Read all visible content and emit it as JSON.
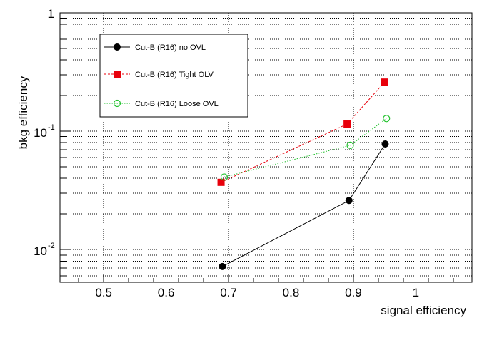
{
  "chart_data": {
    "type": "line",
    "xlabel": "signal efficiency",
    "ylabel": "bkg efficiency",
    "xlim": [
      0.43,
      1.09
    ],
    "ylim": [
      0.0053,
      1.0
    ],
    "y_scale": "log",
    "grid": true,
    "grid_style": "dotted",
    "legend_position": "top-left",
    "x_ticks": [
      0.5,
      0.6,
      0.7,
      0.8,
      0.9,
      1.0
    ],
    "x_tick_labels": [
      "0.5",
      "0.6",
      "0.7",
      "0.8",
      "0.9",
      "1"
    ],
    "y_tick_labels": [
      {
        "value": 0.01,
        "base": "10",
        "exp": "-2"
      },
      {
        "value": 0.1,
        "base": "10",
        "exp": "-1"
      },
      {
        "value": 1,
        "base": "1",
        "exp": ""
      }
    ],
    "series": [
      {
        "name": "Cut-B (R16) no OVL",
        "color": "#000000",
        "marker": "filled-circle",
        "line_style": "solid",
        "x": [
          0.69,
          0.893,
          0.951
        ],
        "y": [
          0.0072,
          0.026,
          0.078
        ]
      },
      {
        "name": "Cut-B (R16) Tight OLV",
        "color": "#e8000b",
        "marker": "filled-square",
        "line_style": "dashed",
        "x": [
          0.688,
          0.89,
          0.95
        ],
        "y": [
          0.037,
          0.115,
          0.26
        ]
      },
      {
        "name": "Cut-B (R16) Loose OVL",
        "color": "#22c22e",
        "marker": "open-circle",
        "line_style": "dotted",
        "x": [
          0.693,
          0.895,
          0.953
        ],
        "y": [
          0.041,
          0.076,
          0.128
        ]
      }
    ]
  }
}
